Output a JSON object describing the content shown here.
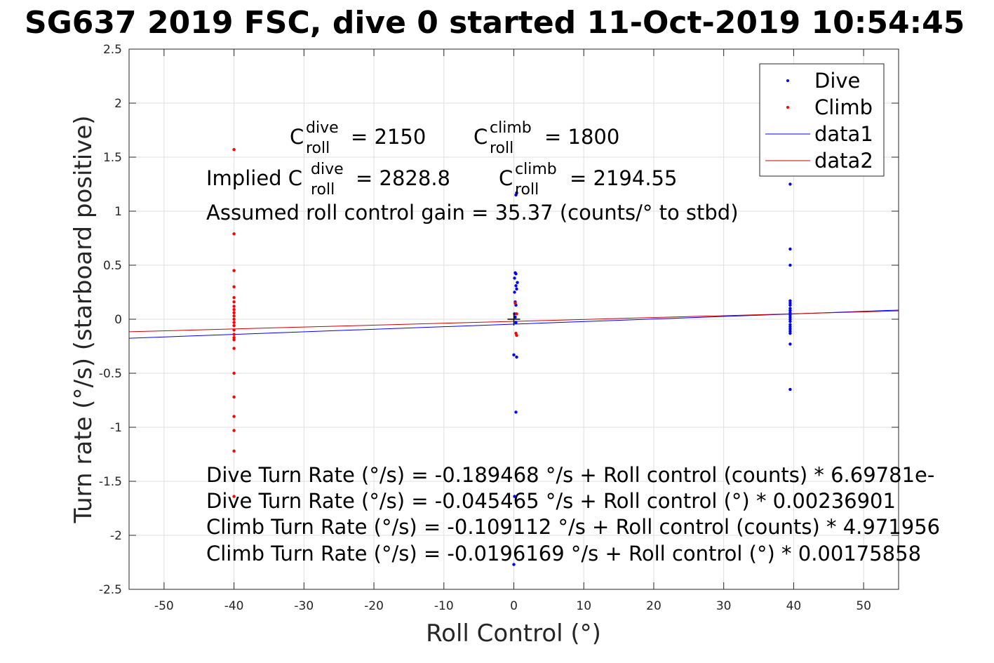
{
  "chart_data": {
    "type": "scatter",
    "title": "SG637 2019 FSC, dive 0 started 11-Oct-2019 10:54:45",
    "xlabel": "Roll Control (°)",
    "ylabel": "Turn rate (°/s) (starboard positive)",
    "xlim": [
      -55,
      55
    ],
    "ylim": [
      -2.5,
      2.5
    ],
    "grid": true,
    "x_ticks": [
      "-50",
      "-40",
      "-30",
      "-20",
      "-10",
      "0",
      "10",
      "20",
      "30",
      "40",
      "50"
    ],
    "x_tick_values": [
      -50,
      -40,
      -30,
      -20,
      -10,
      0,
      10,
      20,
      30,
      40,
      50
    ],
    "y_ticks": [
      "2.5",
      "2",
      "1.5",
      "1",
      "0.5",
      "0",
      "-0.5",
      "-1",
      "-1.5",
      "-2",
      "-2.5"
    ],
    "y_tick_values": [
      2.5,
      2,
      1.5,
      1,
      0.5,
      0,
      -0.5,
      -1,
      -1.5,
      -2,
      -2.5
    ],
    "legend_position": "top-right",
    "legend": [
      {
        "label": "Dive",
        "kind": "marker",
        "color": "#0000ff"
      },
      {
        "label": "Climb",
        "kind": "marker",
        "color": "#ff0000"
      },
      {
        "label": "data1",
        "kind": "line",
        "color": "#0000ff"
      },
      {
        "label": "data2",
        "kind": "line",
        "color": "#cc0000"
      }
    ],
    "series": [
      {
        "name": "Dive",
        "color": "#0000ff",
        "points": [
          [
            0.3,
            1.15
          ],
          [
            0.4,
            1.17
          ],
          [
            0.2,
            0.43
          ],
          [
            0.3,
            0.42
          ],
          [
            0.1,
            0.38
          ],
          [
            0.5,
            0.34
          ],
          [
            0.3,
            0.31
          ],
          [
            0.4,
            0.28
          ],
          [
            0.1,
            0.25
          ],
          [
            0.2,
            0.16
          ],
          [
            0.3,
            0.13
          ],
          [
            0.1,
            0.05
          ],
          [
            0.2,
            0.02
          ],
          [
            0.3,
            -0.03
          ],
          [
            0.0,
            -0.33
          ],
          [
            0.4,
            -0.35
          ],
          [
            0.3,
            -0.86
          ],
          [
            0.1,
            -1.64
          ],
          [
            0.0,
            -2.27
          ],
          [
            39.5,
            1.25
          ],
          [
            39.5,
            0.65
          ],
          [
            39.5,
            0.5
          ],
          [
            39.5,
            0.17
          ],
          [
            39.5,
            0.15
          ],
          [
            39.5,
            0.13
          ],
          [
            39.5,
            0.1
          ],
          [
            39.5,
            0.08
          ],
          [
            39.5,
            0.06
          ],
          [
            39.5,
            0.04
          ],
          [
            39.5,
            0.02
          ],
          [
            39.5,
            0.0
          ],
          [
            39.5,
            -0.02
          ],
          [
            39.5,
            -0.05
          ],
          [
            39.5,
            -0.07
          ],
          [
            39.5,
            -0.09
          ],
          [
            39.5,
            -0.11
          ],
          [
            39.5,
            -0.13
          ],
          [
            39.5,
            -0.23
          ],
          [
            39.5,
            -0.65
          ]
        ]
      },
      {
        "name": "Climb",
        "color": "#ff0000",
        "points": [
          [
            -40,
            1.57
          ],
          [
            -40,
            0.79
          ],
          [
            -40,
            0.45
          ],
          [
            -40,
            0.3
          ],
          [
            -40,
            0.2
          ],
          [
            -40,
            0.16
          ],
          [
            -40,
            0.12
          ],
          [
            -40,
            0.09
          ],
          [
            -40,
            0.06
          ],
          [
            -40,
            0.03
          ],
          [
            -40,
            0.0
          ],
          [
            -40,
            -0.03
          ],
          [
            -40,
            -0.06
          ],
          [
            -40,
            -0.1
          ],
          [
            -40,
            -0.14
          ],
          [
            -40,
            -0.17
          ],
          [
            -40,
            -0.19
          ],
          [
            -40,
            -0.27
          ],
          [
            -40,
            -0.5
          ],
          [
            -40,
            -0.72
          ],
          [
            -40,
            -0.9
          ],
          [
            -40,
            -1.03
          ],
          [
            -40,
            -1.22
          ],
          [
            -40,
            -1.64
          ],
          [
            0.2,
            0.15
          ],
          [
            0.4,
            0.05
          ],
          [
            0.3,
            -0.13
          ],
          [
            0.4,
            -0.15
          ]
        ]
      },
      {
        "name": "data1",
        "color": "#0000ff",
        "type": "line",
        "x": [
          -55,
          55
        ],
        "y": [
          -0.1758,
          0.0848
        ]
      },
      {
        "name": "data2",
        "color": "#cc0000",
        "type": "line",
        "x": [
          -55,
          55
        ],
        "y": [
          -0.1163,
          0.0771
        ]
      }
    ],
    "origin_marker": {
      "x": 0,
      "y": 0,
      "symbol": "+",
      "color": "#000000"
    },
    "annotations": {
      "c_roll_dive": {
        "prefix": "C",
        "sup": "dive",
        "sub": "roll",
        "value": "= 2150"
      },
      "c_roll_climb": {
        "prefix": "C",
        "sup": "climb",
        "sub": "roll",
        "value": "= 1800"
      },
      "implied_dive": {
        "prefix": "Implied C",
        "sup": "dive",
        "sub": "roll",
        "value": "= 2828.8"
      },
      "implied_climb": {
        "prefix": "C",
        "sup": "climb",
        "sub": "roll",
        "value": "= 2194.55"
      },
      "gain": "Assumed roll control gain = 35.37 (counts/° to stbd)",
      "fit_lines": [
        "Dive Turn Rate (°/s) = -0.189468 °/s + Roll control (counts) * 6.69781e-",
        "Dive Turn Rate (°/s) = -0.045465 °/s + Roll control (°) * 0.00236901",
        "Climb Turn Rate (°/s) = -0.109112 °/s + Roll control (counts) * 4.971956",
        "Climb Turn Rate (°/s) = -0.0196169 °/s + Roll control (°) * 0.00175858"
      ]
    }
  }
}
